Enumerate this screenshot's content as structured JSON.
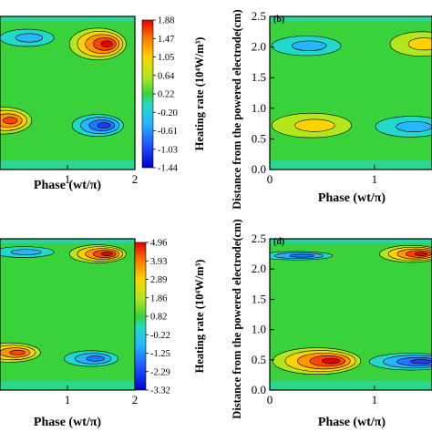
{
  "chart_data": [
    {
      "id": "a",
      "type": "heatmap",
      "panel_label": "",
      "xlabel": "Phase (wt/π)",
      "ylabel": "",
      "x_ticks": [
        "1",
        "2"
      ],
      "x_tick_values": [
        1,
        2
      ],
      "xlim": [
        0,
        2
      ],
      "ylim": [
        0,
        2.5
      ],
      "colorbar": {
        "label": "Heating rate (10⁴W/m³)",
        "ticks": [
          "1.88",
          "1.47",
          "1.05",
          "0.64",
          "0.22",
          "-0.20",
          "-0.61",
          "-1.03",
          "-1.44"
        ],
        "min": -1.44,
        "max": 1.88
      },
      "features": [
        {
          "x": 1.45,
          "y": 2.05,
          "peak": 1.88
        },
        {
          "x": 0.05,
          "y": 0.8,
          "peak": 1.55
        },
        {
          "x": 1.45,
          "y": 0.72,
          "peak": -1.44
        },
        {
          "x": 0.4,
          "y": 2.15,
          "peak": -0.5
        }
      ]
    },
    {
      "id": "b",
      "type": "heatmap",
      "panel_label": "(b)",
      "xlabel": "Phase (wt/π)",
      "ylabel": "Distance from the powered electrode(cm)",
      "x_ticks": [
        "0",
        "1"
      ],
      "x_tick_values": [
        0,
        1
      ],
      "y_ticks": [
        "0.0",
        "0.5",
        "1.0",
        "1.5",
        "2.0",
        "2.5"
      ],
      "xlim": [
        0,
        1.55
      ],
      "ylim": [
        0,
        2.5
      ],
      "features": [
        {
          "x": 0.35,
          "y": 2.02,
          "peak": -1.2
        },
        {
          "x": 1.45,
          "y": 2.05,
          "peak": 1.3
        },
        {
          "x": 0.4,
          "y": 0.72,
          "peak": 1.3
        },
        {
          "x": 1.35,
          "y": 0.7,
          "peak": -1.3
        }
      ]
    },
    {
      "id": "c",
      "type": "heatmap",
      "panel_label": "",
      "xlabel": "Phase (wt/π)",
      "ylabel": "",
      "x_ticks": [
        "1",
        "2"
      ],
      "x_tick_values": [
        1,
        2
      ],
      "xlim": [
        0,
        2
      ],
      "ylim": [
        0,
        2.5
      ],
      "colorbar": {
        "label": "Heating rate (10⁴W/m³)",
        "ticks": [
          "4.96",
          "3.93",
          "2.89",
          "1.86",
          "0.82",
          "-0.22",
          "-1.25",
          "-2.29",
          "-3.32"
        ],
        "min": -3.32,
        "max": 4.96
      },
      "features": [
        {
          "x": 1.45,
          "y": 2.25,
          "peak": 4.5
        },
        {
          "x": 0.15,
          "y": 0.62,
          "peak": 3.8
        },
        {
          "x": 1.35,
          "y": 0.52,
          "peak": -3.0
        },
        {
          "x": 0.35,
          "y": 2.28,
          "peak": -1.0
        }
      ]
    },
    {
      "id": "d",
      "type": "heatmap",
      "panel_label": "(d)",
      "xlabel": "Phase (wt/π)",
      "ylabel": "Distance from the powered electrode(cm)",
      "x_ticks": [
        "0",
        "1"
      ],
      "x_tick_values": [
        0,
        1
      ],
      "y_ticks": [
        "0.0",
        "0.5",
        "1.0",
        "1.5",
        "2.0",
        "2.5"
      ],
      "xlim": [
        0,
        1.55
      ],
      "ylim": [
        0,
        2.5
      ],
      "features": [
        {
          "x": 0.25,
          "y": 2.22,
          "peak": -1.5
        },
        {
          "x": 1.35,
          "y": 2.25,
          "peak": 2.8
        },
        {
          "x": 0.45,
          "y": 0.48,
          "peak": 2.8
        },
        {
          "x": 1.35,
          "y": 0.47,
          "peak": -2.2
        }
      ]
    }
  ]
}
